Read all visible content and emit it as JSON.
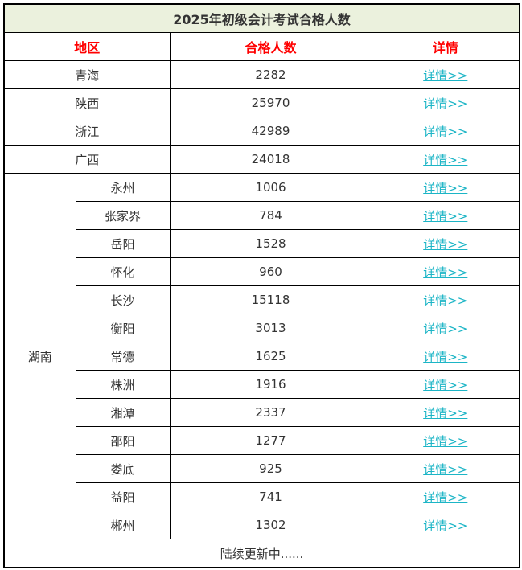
{
  "title": "2025年初级会计考试合格人数",
  "headers": {
    "region": "地区",
    "count": "合格人数",
    "detail": "详情"
  },
  "link_label": "详情>>",
  "rows": [
    {
      "region": "青海",
      "count": "2282"
    },
    {
      "region": "陕西",
      "count": "25970"
    },
    {
      "region": "浙江",
      "count": "42989"
    },
    {
      "region": "广西",
      "count": "24018"
    }
  ],
  "hunan": {
    "province": "湖南",
    "cities": [
      {
        "city": "永州",
        "count": "1006"
      },
      {
        "city": "张家界",
        "count": "784"
      },
      {
        "city": "岳阳",
        "count": "1528"
      },
      {
        "city": "怀化",
        "count": "960"
      },
      {
        "city": "长沙",
        "count": "15118"
      },
      {
        "city": "衡阳",
        "count": "3013"
      },
      {
        "city": "常德",
        "count": "1625"
      },
      {
        "city": "株洲",
        "count": "1916"
      },
      {
        "city": "湘潭",
        "count": "2337"
      },
      {
        "city": "邵阳",
        "count": "1277"
      },
      {
        "city": "娄底",
        "count": "925"
      },
      {
        "city": "益阳",
        "count": "741"
      },
      {
        "city": "郴州",
        "count": "1302"
      }
    ]
  },
  "footer": "陆续更新中......",
  "colors": {
    "header_text": "#ff0000",
    "link": "#1cb5c6",
    "title_bg": "#ebf1dd"
  }
}
